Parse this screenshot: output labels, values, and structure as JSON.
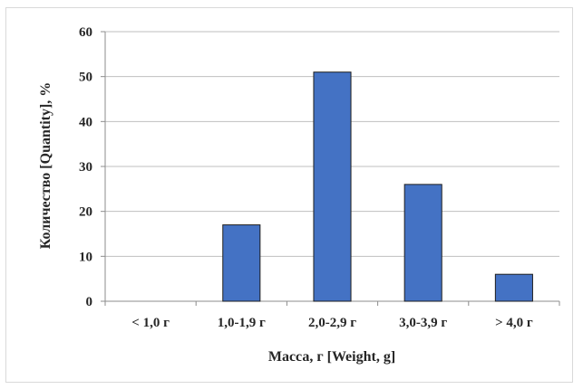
{
  "chart_data": {
    "type": "bar",
    "categories": [
      "< 1,0 г",
      "1,0-1,9 г",
      "2,0-2,9 г",
      "3,0-3,9 г",
      "> 4,0 г"
    ],
    "series": [
      {
        "values": [
          0,
          17,
          51,
          26,
          6
        ]
      }
    ],
    "xlabel": "Масса, г [Weight, g]",
    "ylabel": "Количество  [Quantity],  %",
    "ylim": [
      0,
      60
    ],
    "yticks": [
      0,
      10,
      20,
      30,
      40,
      50,
      60
    ],
    "grid": "horizontal",
    "colors": {
      "bar": "#4472C4",
      "bar_edge": "#1f1f1f",
      "grid": "#bfbfbf"
    }
  }
}
